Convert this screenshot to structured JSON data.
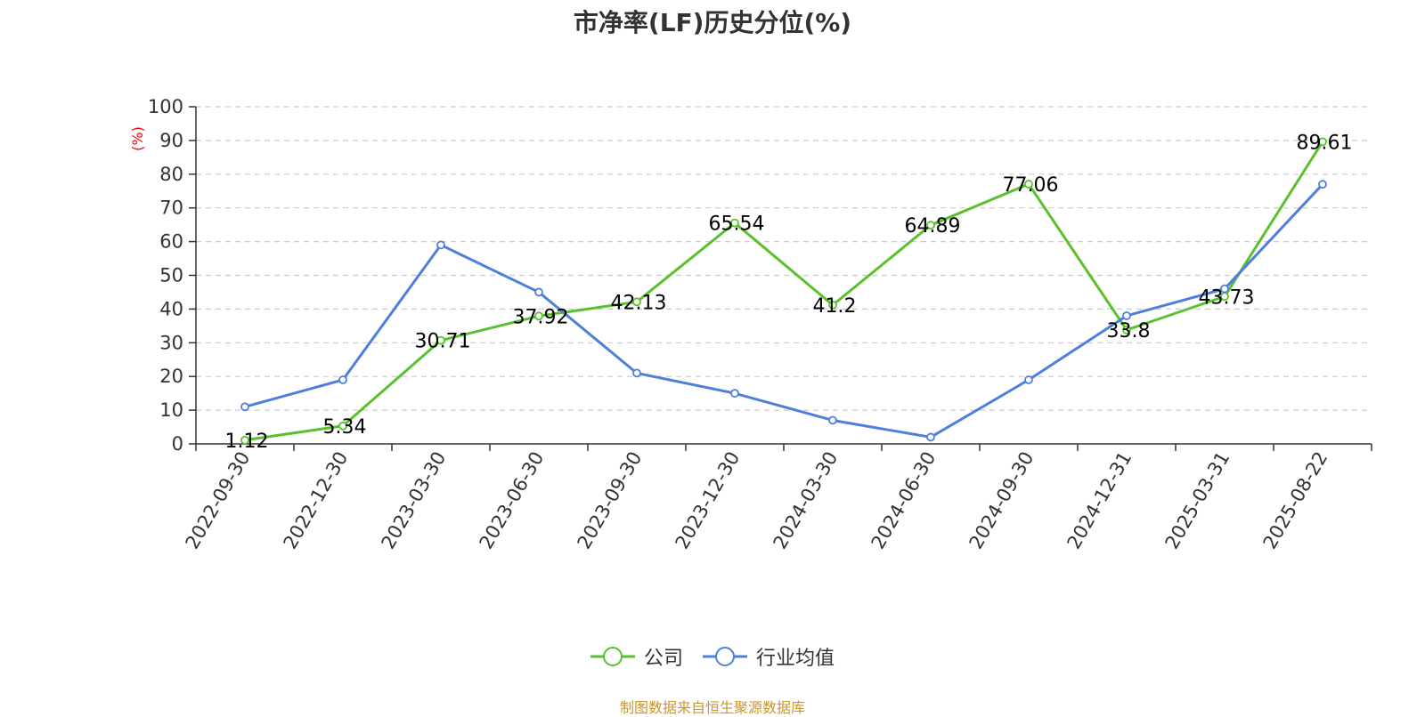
{
  "chart_data": {
    "type": "line",
    "title": "市净率(LF)历史分位(%)",
    "ylabel": "(%)",
    "ylim": [
      0,
      100
    ],
    "yticks": [
      0,
      10,
      20,
      30,
      40,
      50,
      60,
      70,
      80,
      90,
      100
    ],
    "categories": [
      "2022-09-30",
      "2022-12-30",
      "2023-03-30",
      "2023-06-30",
      "2023-09-30",
      "2023-12-30",
      "2024-03-30",
      "2024-06-30",
      "2024-09-30",
      "2024-12-31",
      "2025-03-31",
      "2025-08-22"
    ],
    "grid": true,
    "legend_position": "bottom",
    "series": [
      {
        "name": "公司",
        "color": "#5ac12e",
        "values": [
          1.12,
          5.34,
          30.71,
          37.92,
          42.13,
          65.54,
          41.2,
          64.89,
          77.06,
          33.8,
          43.73,
          89.61
        ],
        "labels": [
          "1.12",
          "5.34",
          "30.71",
          "37.92",
          "42.13",
          "65.54",
          "41.2",
          "64.89",
          "77.06",
          "33.8",
          "43.73",
          "89.61"
        ]
      },
      {
        "name": "行业均值",
        "color": "#4e7fdc",
        "values": [
          11,
          19,
          59,
          45,
          21,
          15,
          7,
          2,
          19,
          38,
          46,
          77
        ]
      }
    ]
  },
  "source_text": "制图数据来自恒生聚源数据库",
  "source_color": "#c8962d"
}
